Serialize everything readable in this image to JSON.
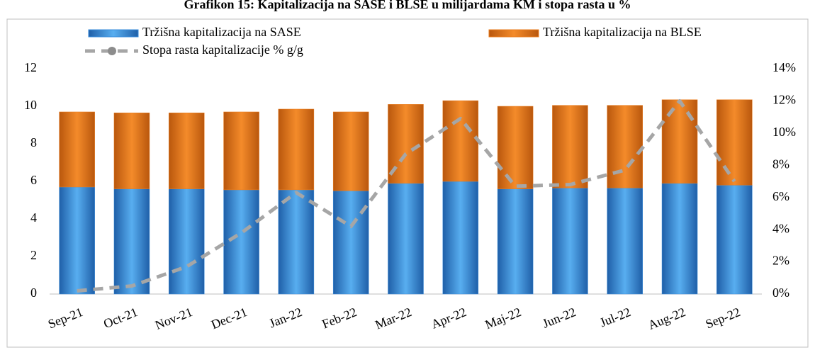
{
  "chart_data": {
    "type": "bar_line",
    "title": "Grafikon 15: Kapitalizacija na SASE i BLSE u milijardama KM i stopa rasta u %",
    "categories": [
      "Sep-21",
      "Oct-21",
      "Nov-21",
      "Dec-21",
      "Jan-22",
      "Feb-22",
      "Mar-22",
      "Apr-22",
      "Maj-22",
      "Jun-22",
      "Jul-22",
      "Aug-22",
      "Sep-22"
    ],
    "series": [
      {
        "name": "Tržišna kapitalizacija na SASE",
        "color": "#3a8ddb",
        "values": [
          5.7,
          5.6,
          5.6,
          5.55,
          5.55,
          5.5,
          5.9,
          6.0,
          5.6,
          5.65,
          5.65,
          5.9,
          5.8
        ]
      },
      {
        "name": "Tržišna kapitalizacija na BLSE",
        "color": "#ea7d1f",
        "values": [
          4.0,
          4.05,
          4.05,
          4.15,
          4.3,
          4.2,
          4.2,
          4.3,
          4.4,
          4.4,
          4.4,
          4.45,
          4.55
        ]
      },
      {
        "name": "Stopa rasta kapitalizacije % g/g",
        "color": "#a6a6a6",
        "axis": "y2",
        "values": [
          0.2,
          0.5,
          1.7,
          3.8,
          6.3,
          4.2,
          8.7,
          10.9,
          6.7,
          6.8,
          7.7,
          12.0,
          7.0
        ]
      }
    ],
    "ylim": [
      0,
      12
    ],
    "yticks": [
      0,
      2,
      4,
      6,
      8,
      10,
      12
    ],
    "y2lim": [
      0,
      14
    ],
    "y2ticks": [
      {
        "value": 0,
        "label": "0%"
      },
      {
        "value": 2,
        "label": "2%"
      },
      {
        "value": 4,
        "label": "4%"
      },
      {
        "value": 6,
        "label": "6%"
      },
      {
        "value": 8,
        "label": "8%"
      },
      {
        "value": 10,
        "label": "10%"
      },
      {
        "value": 12,
        "label": "12%"
      },
      {
        "value": 14,
        "label": "14%"
      }
    ]
  }
}
